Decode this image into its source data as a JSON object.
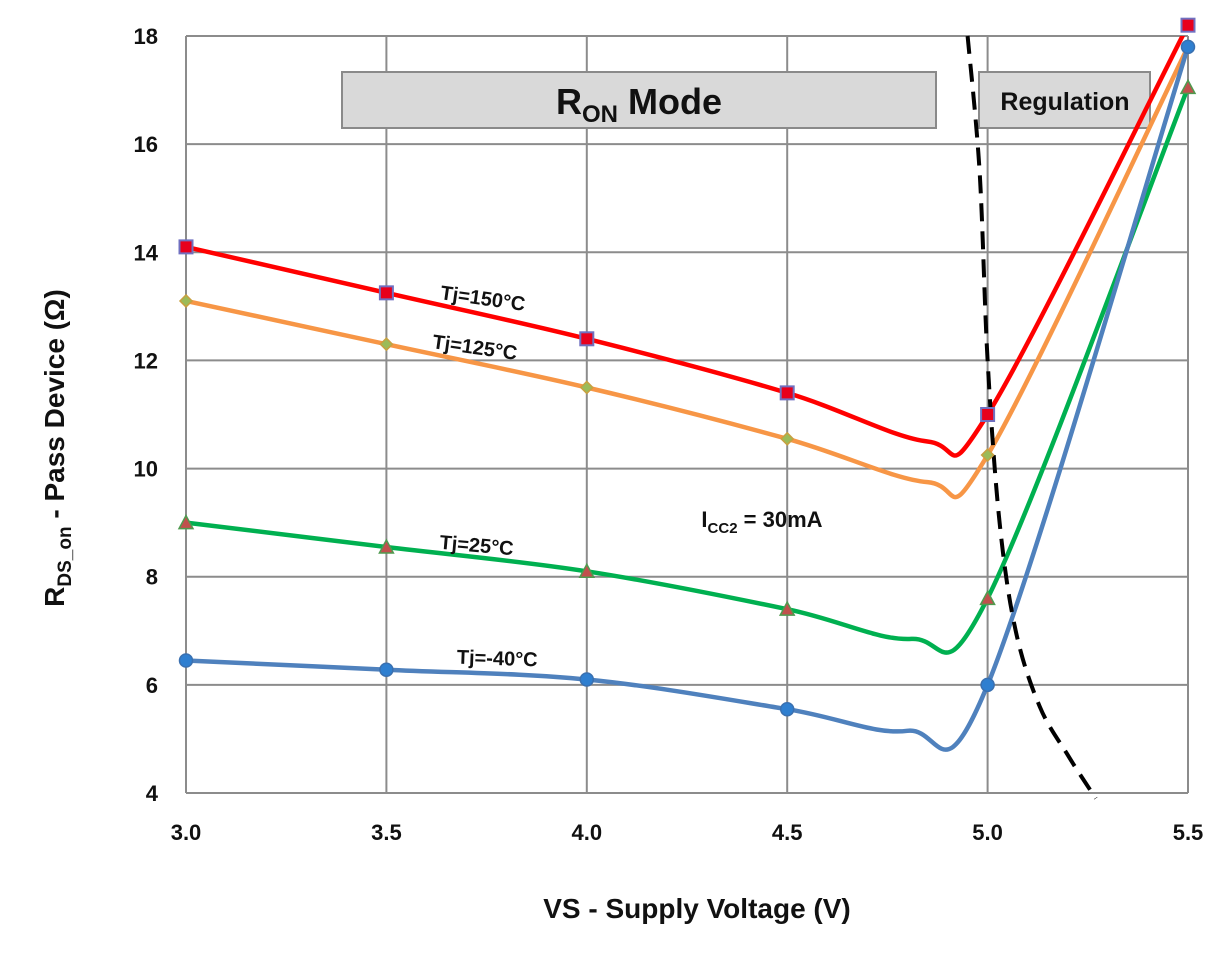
{
  "chart_data": {
    "type": "line",
    "title": "",
    "xlabel": "VS - Supply Voltage (V)",
    "ylabel_main": "R",
    "ylabel_sub": "DS_on",
    "ylabel_rest": " - Pass Device (Ω)",
    "xlim": [
      3.0,
      5.5
    ],
    "ylim": [
      4,
      18
    ],
    "xticks": [
      3.0,
      3.5,
      4.0,
      4.5,
      5.0,
      5.5
    ],
    "xtick_labels": [
      "3.0",
      "3.5",
      "4.0",
      "4.5",
      "5.0",
      "5.5"
    ],
    "yticks": [
      4,
      6,
      8,
      10,
      12,
      14,
      16,
      18
    ],
    "ytick_labels": [
      "4",
      "6",
      "8",
      "10",
      "12",
      "14",
      "16",
      "18"
    ],
    "grid": true,
    "series": [
      {
        "name": "Tj=150°C",
        "color": "#ff0000",
        "marker": "square",
        "marker_fill": "#e8001c",
        "marker_stroke": "#7070c0",
        "x": [
          3.0,
          3.5,
          4.0,
          4.5,
          5.0,
          5.5
        ],
        "values": [
          14.1,
          13.25,
          12.4,
          11.4,
          11.0,
          18.2
        ],
        "curve_y": [
          14.1,
          13.25,
          12.4,
          11.4,
          10.5,
          11.0,
          18.2
        ],
        "curve_x": [
          3.0,
          3.5,
          4.0,
          4.5,
          4.85,
          5.0,
          5.5
        ]
      },
      {
        "name": "Tj=125°C",
        "color": "#f79646",
        "marker": "diamond",
        "marker_fill": "#9bbb59",
        "marker_stroke": "#c8a040",
        "x": [
          3.0,
          3.5,
          4.0,
          4.5,
          5.0,
          5.5
        ],
        "values": [
          13.1,
          12.3,
          11.5,
          10.55,
          10.25,
          17.8
        ],
        "curve_y": [
          13.1,
          12.3,
          11.5,
          10.55,
          9.75,
          10.25,
          17.8
        ],
        "curve_x": [
          3.0,
          3.5,
          4.0,
          4.5,
          4.85,
          5.0,
          5.5
        ]
      },
      {
        "name": "Tj=25°C",
        "color": "#00b050",
        "marker": "triangle",
        "marker_fill": "#c0504d",
        "marker_stroke": "#4f9a4f",
        "x": [
          3.0,
          3.5,
          4.0,
          4.5,
          5.0,
          5.5
        ],
        "values": [
          9.0,
          8.55,
          8.1,
          7.4,
          7.6,
          17.05
        ],
        "curve_y": [
          9.0,
          8.55,
          8.1,
          7.4,
          6.85,
          7.6,
          17.05
        ],
        "curve_x": [
          3.0,
          3.5,
          4.0,
          4.5,
          4.81,
          5.0,
          5.5
        ]
      },
      {
        "name": "Tj=-40°C",
        "color": "#4f81bd",
        "marker": "circle",
        "marker_fill": "#2f7fd0",
        "marker_stroke": "#3a70b0",
        "x": [
          3.0,
          3.5,
          4.0,
          4.5,
          5.0,
          5.5
        ],
        "values": [
          6.45,
          6.28,
          6.1,
          5.55,
          6.0,
          17.8
        ],
        "curve_y": [
          6.45,
          6.28,
          6.1,
          5.55,
          5.15,
          6.0,
          17.8
        ],
        "curve_x": [
          3.0,
          3.5,
          4.0,
          4.5,
          4.8,
          5.0,
          5.5
        ]
      }
    ],
    "boundary_curve": {
      "style": "dashed",
      "color": "#000000",
      "x": [
        4.95,
        4.98,
        5.0,
        5.03,
        5.07,
        5.13,
        5.2,
        5.27
      ],
      "y": [
        18.0,
        15.5,
        12.0,
        9.0,
        7.0,
        5.6,
        4.7,
        3.9
      ]
    },
    "annotations": [
      {
        "text": "Tj=150°C"
      },
      {
        "text": "Tj=125°C"
      },
      {
        "text": "Tj=25°C"
      },
      {
        "text": "Tj=-40°C"
      }
    ],
    "current_label": {
      "main": "I",
      "sub": "CC2",
      "rest": " = 30mA"
    },
    "ron_banner": {
      "main": "R",
      "sub": "ON",
      "rest": " Mode"
    },
    "regulation_banner": {
      "text": "Regulation"
    }
  }
}
